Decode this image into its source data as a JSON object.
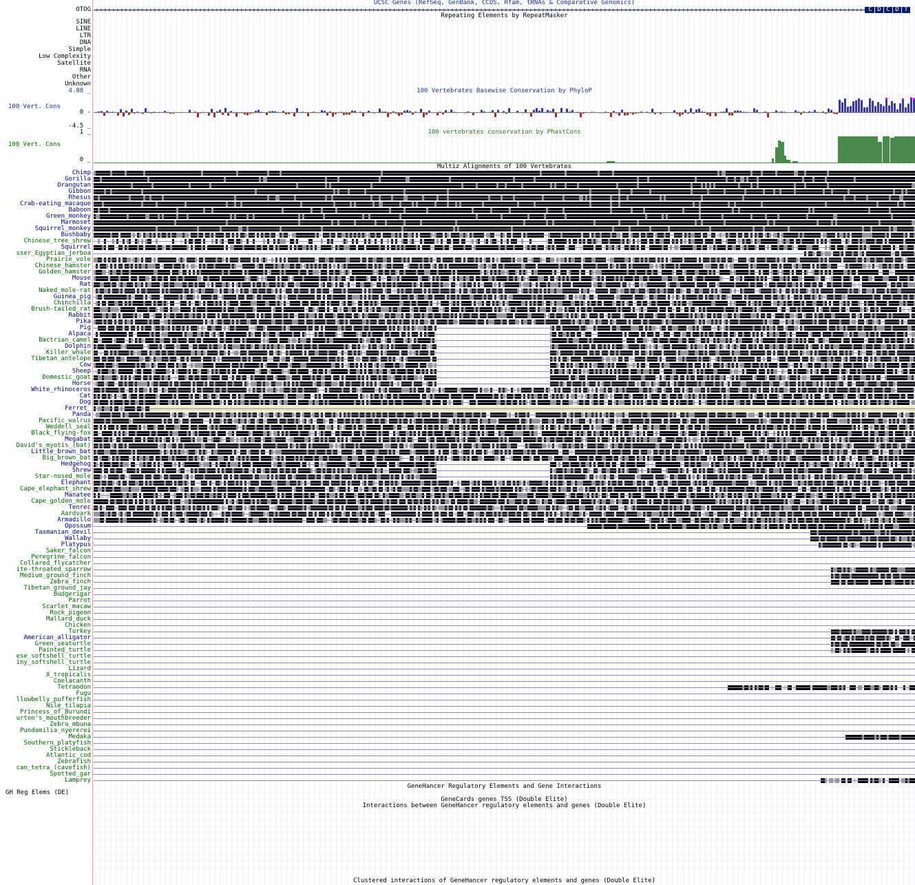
{
  "tracks": {
    "genes_title": "UCSC Genes (RefSeq, GenBank, CCDS, Rfam, tRNAs & Comparative Genomics)",
    "gene_label": "OTOG",
    "gene_exons": [
      "C",
      "D",
      "C",
      "D",
      "T"
    ],
    "rmsk_title": "Repeating Elements by RepeatMasker",
    "rmsk_classes": [
      "SINE",
      "LINE",
      "LTR",
      "DNA",
      "Simple",
      "Low Complexity",
      "Satellite",
      "RNA",
      "Other",
      "Unknown"
    ],
    "phylop_title": "100 Vertebrates Basewise Conservation by PhyloP",
    "phylop_label": "100 Vert. Cons",
    "phylop_max": "4.88 _",
    "phylop_zero": "0 -",
    "phylop_min": "-4.5 _",
    "phastcons_title": "100 vertebrates conservation by PhastCons",
    "phastcons_label": "100 Vert. Cons",
    "phastcons_max": "1 _",
    "phastcons_zero": "0 _",
    "multiz_title": "Multiz Alignments of 100 Vertebrates",
    "genehancer_title": "GeneHancer Regulatory Elements and Gene Interactions",
    "gh_label": "GH Reg Elems (DE)",
    "gh_tss_title": "GeneCards genes TSS (Double Elite)",
    "gh_interactions_title": "Interactions between GeneHancer regulatory elements and genes (Double Elite)",
    "gh_clustered_title": "Clustered interactions of GeneHancer regulatory elements and genes (Double Elite)"
  },
  "colors": {
    "track_title": "#1f2f8f",
    "species_mammal": "#000080",
    "species_other": "#006400",
    "phylop_positive": "#3a3a9a",
    "phylop_negative": "#9a3030",
    "phylop_peak": "#ff00ff",
    "phastcons": "#4a8a4a",
    "alignment_full": "#000000",
    "alignment_partial": "#999999",
    "alignment_weak": "#d8d8d8",
    "highlight": "#f0e8b8",
    "gene": "#0c1c6c"
  },
  "species": [
    {
      "name": "Chimp",
      "group": "mammal"
    },
    {
      "name": "Gorilla",
      "group": "mammal"
    },
    {
      "name": "Orangutan",
      "group": "mammal"
    },
    {
      "name": "Gibbon",
      "group": "mammal"
    },
    {
      "name": "Rhesus",
      "group": "mammal"
    },
    {
      "name": "Crab-eating_macaque",
      "group": "mammal"
    },
    {
      "name": "Baboon",
      "group": "mammal"
    },
    {
      "name": "Green_monkey",
      "group": "mammal"
    },
    {
      "name": "Marmoset",
      "group": "mammal"
    },
    {
      "name": "Squirrel_monkey",
      "group": "mammal"
    },
    {
      "name": "Bushbaby",
      "group": "mammal"
    },
    {
      "name": "Chinese_tree_shrew",
      "group": "other"
    },
    {
      "name": "Squirrel",
      "group": "mammal"
    },
    {
      "name": "sser_Egyptian_jerboa",
      "group": "other"
    },
    {
      "name": "Prairie_vole",
      "group": "other"
    },
    {
      "name": "Chinese_hamster",
      "group": "other"
    },
    {
      "name": "Golden_hamster",
      "group": "other"
    },
    {
      "name": "Mouse",
      "group": "mammal"
    },
    {
      "name": "Rat",
      "group": "mammal"
    },
    {
      "name": "Naked_mole-rat",
      "group": "other"
    },
    {
      "name": "Guinea_pig",
      "group": "mammal"
    },
    {
      "name": "Chinchilla",
      "group": "other"
    },
    {
      "name": "Brush-tailed_rat",
      "group": "other"
    },
    {
      "name": "Rabbit",
      "group": "mammal"
    },
    {
      "name": "Pika",
      "group": "mammal"
    },
    {
      "name": "Pig",
      "group": "mammal"
    },
    {
      "name": "Alpaca",
      "group": "mammal"
    },
    {
      "name": "Bactrian_camel",
      "group": "other"
    },
    {
      "name": "Dolphin",
      "group": "mammal"
    },
    {
      "name": "Killer_whale",
      "group": "other"
    },
    {
      "name": "Tibetan_antelope",
      "group": "other"
    },
    {
      "name": "Cow",
      "group": "mammal"
    },
    {
      "name": "Sheep",
      "group": "mammal"
    },
    {
      "name": "Domestic_goat",
      "group": "other"
    },
    {
      "name": "Horse",
      "group": "mammal"
    },
    {
      "name": "White_rhinoceros",
      "group": "mammal"
    },
    {
      "name": "Cat",
      "group": "mammal"
    },
    {
      "name": "Dog",
      "group": "mammal"
    },
    {
      "name": "Ferret_",
      "group": "mammal"
    },
    {
      "name": "Panda",
      "group": "mammal"
    },
    {
      "name": "Pacific_walrus",
      "group": "other"
    },
    {
      "name": "Weddell_seal",
      "group": "other"
    },
    {
      "name": "Black_flying-fox",
      "group": "other"
    },
    {
      "name": "Megabat",
      "group": "mammal"
    },
    {
      "name": "David's_myotis_(bat)",
      "group": "other"
    },
    {
      "name": "Little_brown_bat",
      "group": "mammal"
    },
    {
      "name": "Big_brown_bat",
      "group": "other"
    },
    {
      "name": "Hedgehog",
      "group": "mammal"
    },
    {
      "name": "Shrew",
      "group": "mammal"
    },
    {
      "name": "Star-nosed_mole",
      "group": "other"
    },
    {
      "name": "Elephant",
      "group": "mammal"
    },
    {
      "name": "Cape_elephant_shrew",
      "group": "other"
    },
    {
      "name": "Manatee",
      "group": "mammal"
    },
    {
      "name": "Cape_golden_mole",
      "group": "other"
    },
    {
      "name": "Tenrec",
      "group": "mammal"
    },
    {
      "name": "Aardvark",
      "group": "other"
    },
    {
      "name": "Armadillo",
      "group": "mammal"
    },
    {
      "name": "Opossum",
      "group": "mammal"
    },
    {
      "name": "Tasmanian_devil",
      "group": "mammal"
    },
    {
      "name": "Wallaby",
      "group": "mammal"
    },
    {
      "name": "Platypus",
      "group": "mammal"
    },
    {
      "name": "Saker_falcon",
      "group": "other"
    },
    {
      "name": "Peregrine_falcon",
      "group": "other"
    },
    {
      "name": "Collared_flycatcher",
      "group": "other"
    },
    {
      "name": "ite-throated_sparrow",
      "group": "other"
    },
    {
      "name": "Medium_ground_finch",
      "group": "other"
    },
    {
      "name": "Zebra_finch",
      "group": "other"
    },
    {
      "name": "Tibetan_ground_jay",
      "group": "other"
    },
    {
      "name": "Budgerigar",
      "group": "other"
    },
    {
      "name": "Parrot",
      "group": "other"
    },
    {
      "name": "Scarlet_macaw",
      "group": "other"
    },
    {
      "name": "Rock_pigeon",
      "group": "other"
    },
    {
      "name": "Mallard_duck",
      "group": "other"
    },
    {
      "name": "Chicken",
      "group": "other"
    },
    {
      "name": "Turkey",
      "group": "other"
    },
    {
      "name": "American_alligator",
      "group": "mammal"
    },
    {
      "name": "Green_seaturtle",
      "group": "other"
    },
    {
      "name": "Painted_turtle",
      "group": "other"
    },
    {
      "name": "ese_softshell_turtle",
      "group": "other"
    },
    {
      "name": "iny_softshell_turtle",
      "group": "other"
    },
    {
      "name": "Lizard",
      "group": "other"
    },
    {
      "name": "X_tropicalis",
      "group": "other"
    },
    {
      "name": "Coelacanth",
      "group": "other"
    },
    {
      "name": "Tetraodon",
      "group": "other"
    },
    {
      "name": "Fugu",
      "group": "other"
    },
    {
      "name": "llowbelly_pufferfish",
      "group": "other"
    },
    {
      "name": "Nile_tilapia",
      "group": "other"
    },
    {
      "name": "Princess_of_Burundi",
      "group": "other"
    },
    {
      "name": "urton's_mouthbreeder",
      "group": "other"
    },
    {
      "name": "Zebra_mbuna",
      "group": "other"
    },
    {
      "name": "Pundamilia_nyererei",
      "group": "other"
    },
    {
      "name": "Medaka",
      "group": "other"
    },
    {
      "name": "Southern_platyfish",
      "group": "other"
    },
    {
      "name": "Stickleback",
      "group": "other"
    },
    {
      "name": "Atlantic_cod",
      "group": "other"
    },
    {
      "name": "Zebrafish",
      "group": "other"
    },
    {
      "name": "can_tetra_(cavefish)",
      "group": "other"
    },
    {
      "name": "Spotted_gar",
      "group": "other"
    },
    {
      "name": "Lamprey",
      "group": "other"
    }
  ]
}
